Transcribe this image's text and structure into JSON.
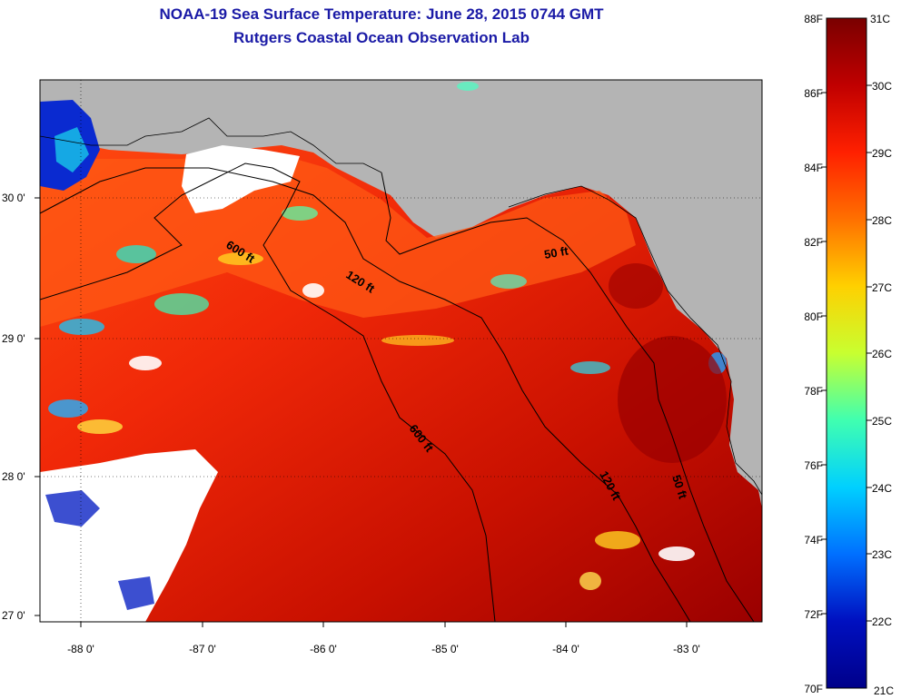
{
  "title": "NOAA-19 Sea Surface Temperature:  June 28, 2015 0744 GMT",
  "subtitle": "Rutgers Coastal Ocean Observation Lab",
  "map": {
    "lat_labels": [
      "30 0'",
      "29 0'",
      "28 0'",
      "27 0'"
    ],
    "lon_labels": [
      "-88 0'",
      "-87 0'",
      "-86 0'",
      "-85 0'",
      "-84 0'",
      "-83 0'"
    ],
    "contour_labels": [
      "600 ft",
      "120 ft",
      "50 ft",
      "600 ft",
      "120 ft",
      "50 ft"
    ]
  },
  "colorbar": {
    "f_labels": [
      "88F",
      "86F",
      "84F",
      "82F",
      "80F",
      "78F",
      "76F",
      "74F",
      "72F",
      "70F"
    ],
    "c_labels": [
      "31C",
      "30C",
      "29C",
      "28C",
      "27C",
      "26C",
      "25C",
      "24C",
      "23C",
      "22C",
      "21C"
    ],
    "colors": [
      "#7a0000",
      "#c00000",
      "#ff2000",
      "#ff7000",
      "#ffd000",
      "#c8ff30",
      "#40ffb0",
      "#00d0ff",
      "#0070ff",
      "#0010c0",
      "#00008a"
    ]
  }
}
